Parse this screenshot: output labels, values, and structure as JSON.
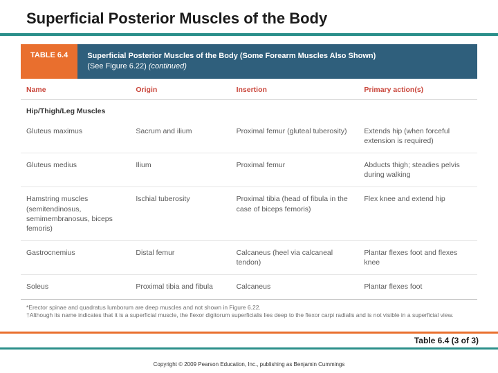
{
  "title": "Superficial Posterior Muscles of the Body",
  "colors": {
    "teal": "#2b8f8a",
    "orange": "#e96f2e",
    "navy": "#2f5f7c",
    "header_red": "#c9453a"
  },
  "banner": {
    "label": "TABLE 6.4",
    "line1_bold": "Superficial Posterior Muscles of the Body (Some Forearm Muscles Also Shown)",
    "line2_plain": "(See Figure 6.22)",
    "line2_italic": "(continued)"
  },
  "columns": {
    "name": "Name",
    "origin": "Origin",
    "insertion": "Insertion",
    "action": "Primary action(s)"
  },
  "section": "Hip/Thigh/Leg Muscles",
  "rows": [
    {
      "name": "Gluteus maximus",
      "origin": "Sacrum and ilium",
      "insertion": "Proximal femur (gluteal tuberosity)",
      "action": "Extends hip (when forceful extension is required)"
    },
    {
      "name": "Gluteus medius",
      "origin": "Ilium",
      "insertion": "Proximal femur",
      "action": "Abducts thigh; steadies pelvis during walking"
    },
    {
      "name": "Hamstring muscles (semitendinosus, semimembranosus, biceps femoris)",
      "origin": "Ischial tuberosity",
      "insertion": "Proximal tibia (head of fibula in the case of biceps femoris)",
      "action": "Flex knee and extend hip"
    },
    {
      "name": "Gastrocnemius",
      "origin": "Distal femur",
      "insertion": "Calcaneus (heel via calcaneal tendon)",
      "action": "Plantar flexes foot and flexes knee"
    },
    {
      "name": "Soleus",
      "origin": "Proximal tibia and fibula",
      "insertion": "Calcaneus",
      "action": "Plantar flexes foot"
    }
  ],
  "footnotes": {
    "a": "*Erector spinae and quadratus lumborum are deep muscles and not shown in Figure 6.22.",
    "b": "†Although its name indicates that it is a superficial muscle, the flexor digitorum superficialis lies deep to the flexor carpi radialis and is not visible in a superficial view."
  },
  "caption": "Table 6.4 (3 of 3)",
  "copyright": "Copyright © 2009 Pearson Education, Inc., publishing as Benjamin Cummings"
}
